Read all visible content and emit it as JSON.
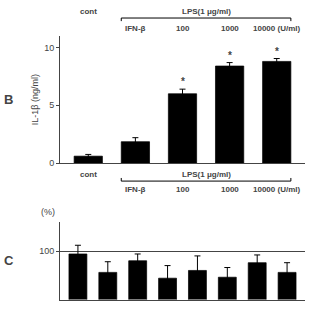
{
  "chart_data": [
    {
      "type": "bar",
      "title": "B",
      "categories": [
        null,
        null,
        null,
        null,
        null
      ],
      "values": [
        0.6,
        1.85,
        6.0,
        8.4,
        8.8
      ],
      "errors": [
        0.15,
        0.35,
        0.4,
        0.3,
        0.25
      ],
      "color": "#000000",
      "ylim": [
        0,
        11
      ],
      "yticks": [
        0,
        5,
        10
      ],
      "ylabel": "IL-1β (ng/ml)",
      "grid": false,
      "tick_labels": "y",
      "significance": [
        null,
        null,
        "*",
        "*",
        "*"
      ],
      "annotations": {
        "control": "cont",
        "treatment": "LPS(1 μg/ml)",
        "dose_title": "IFN-β",
        "doses": [
          "100",
          "1000",
          "10000 (U/ml)"
        ]
      }
    },
    {
      "type": "bar",
      "title": "C",
      "categories": [
        null,
        null,
        null,
        null,
        null,
        null,
        null,
        null
      ],
      "values": [
        97,
        78,
        90,
        72,
        80,
        73,
        88,
        78
      ],
      "errors": [
        9,
        11,
        7,
        13,
        15,
        10,
        8,
        10
      ],
      "color": "#000000",
      "ylim": [
        50,
        130
      ],
      "yticks": [
        100
      ],
      "ylabel": "(%)",
      "grid": true,
      "tick_labels": "y"
    }
  ]
}
